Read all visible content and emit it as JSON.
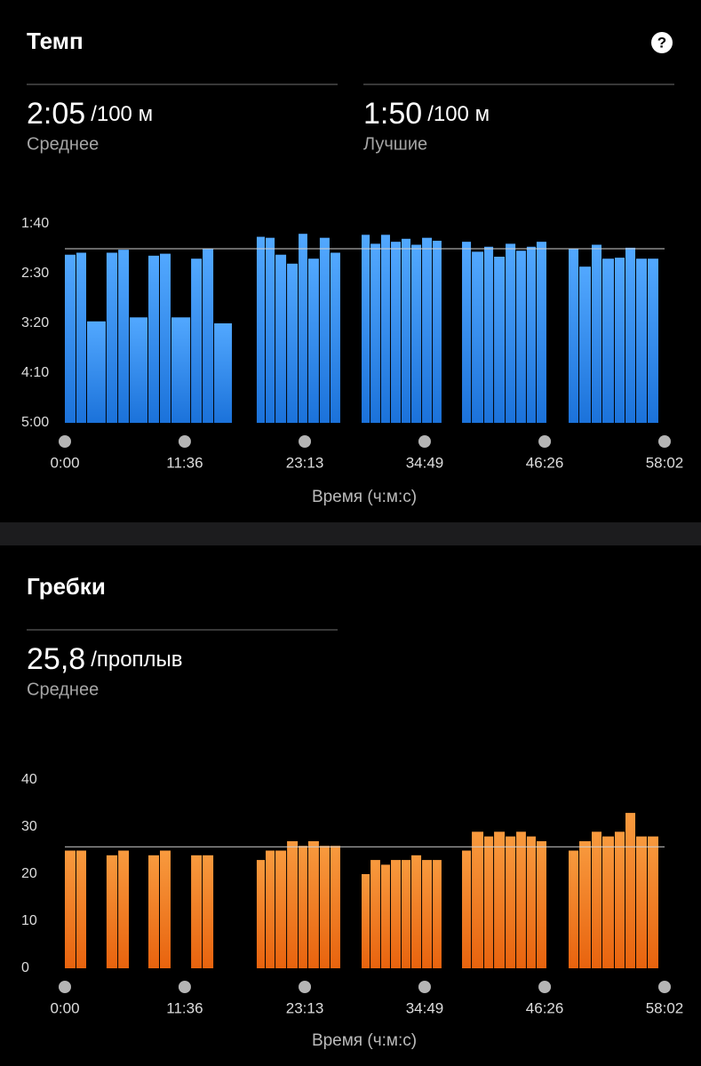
{
  "sections": [
    {
      "title": "Темп",
      "help": "?",
      "stats": [
        {
          "value": "2:05",
          "unit": "/100 м",
          "label": "Среднее"
        },
        {
          "value": "1:50",
          "unit": "/100 м",
          "label": "Лучшие"
        }
      ]
    },
    {
      "title": "Гребки",
      "stats": [
        {
          "value": "25,8",
          "unit": "/проплыв",
          "label": "Среднее"
        }
      ]
    }
  ],
  "chart_data": [
    {
      "type": "histogram",
      "xlabel": "Время (ч:м:с)",
      "color": [
        "#52a8ff",
        "#1b72da"
      ],
      "bins": [
        0,
        67,
        129,
        242,
        310,
        377,
        485,
        552,
        619,
        733,
        800,
        867,
        975,
        1114,
        1166,
        1223,
        1290,
        1357,
        1413,
        1480,
        1542,
        1604,
        1723,
        1775,
        1836,
        1893,
        1955,
        2012,
        2074,
        2136,
        2192,
        2306,
        2363,
        2435,
        2492,
        2559,
        2621,
        2682,
        2739,
        2801,
        2925,
        2987,
        3059,
        3121,
        3193,
        3255,
        3317,
        3384,
        3451
      ],
      "values": [
        131,
        129,
        198,
        129,
        126,
        194,
        132,
        130,
        194,
        135,
        125,
        200,
        null,
        113,
        114,
        131,
        140,
        110,
        135,
        114,
        129,
        null,
        111,
        120,
        111,
        118,
        115,
        121,
        114,
        117,
        null,
        118,
        128,
        123,
        133,
        120,
        127,
        123,
        118,
        null,
        125,
        143,
        121,
        135,
        134,
        124,
        135,
        135
      ],
      "average": 125,
      "xlim": [
        0,
        3482
      ],
      "xticks": [
        {
          "value": 0,
          "label": "0:00"
        },
        {
          "value": 696,
          "label": "11:36"
        },
        {
          "value": 1393,
          "label": "23:13"
        },
        {
          "value": 2089,
          "label": "34:49"
        },
        {
          "value": 2786,
          "label": "46:26"
        },
        {
          "value": 3482,
          "label": "58:02"
        }
      ],
      "ylim": [
        300,
        100
      ],
      "yticks": [
        {
          "value": 100,
          "label": "1:40"
        },
        {
          "value": 150,
          "label": "2:30"
        },
        {
          "value": 200,
          "label": "3:20"
        },
        {
          "value": 250,
          "label": "4:10"
        },
        {
          "value": 300,
          "label": "5:00"
        }
      ]
    },
    {
      "type": "histogram",
      "xlabel": "Время (ч:м:с)",
      "color": [
        "#f89a3e",
        "#e8630e"
      ],
      "bins": [
        0,
        67,
        129,
        242,
        310,
        377,
        485,
        552,
        619,
        733,
        800,
        867,
        975,
        1114,
        1166,
        1223,
        1290,
        1357,
        1413,
        1480,
        1542,
        1604,
        1723,
        1775,
        1836,
        1893,
        1955,
        2012,
        2074,
        2136,
        2192,
        2306,
        2363,
        2435,
        2492,
        2559,
        2621,
        2682,
        2739,
        2801,
        2925,
        2987,
        3059,
        3121,
        3193,
        3255,
        3317,
        3384,
        3451
      ],
      "values": [
        25,
        25,
        0,
        24,
        25,
        0,
        24,
        25,
        0,
        24,
        24,
        0,
        null,
        23,
        25,
        25,
        27,
        26,
        27,
        26,
        26,
        null,
        20,
        23,
        22,
        23,
        23,
        24,
        23,
        23,
        null,
        25,
        29,
        28,
        29,
        28,
        29,
        28,
        27,
        null,
        25,
        27,
        29,
        28,
        29,
        33,
        28,
        28
      ],
      "average": 25.8,
      "xlim": [
        0,
        3482
      ],
      "xticks": [
        {
          "value": 0,
          "label": "0:00"
        },
        {
          "value": 696,
          "label": "11:36"
        },
        {
          "value": 1393,
          "label": "23:13"
        },
        {
          "value": 2089,
          "label": "34:49"
        },
        {
          "value": 2786,
          "label": "46:26"
        },
        {
          "value": 3482,
          "label": "58:02"
        }
      ],
      "ylim": [
        0,
        40
      ],
      "yticks": [
        0,
        10,
        20,
        30,
        40
      ]
    }
  ]
}
